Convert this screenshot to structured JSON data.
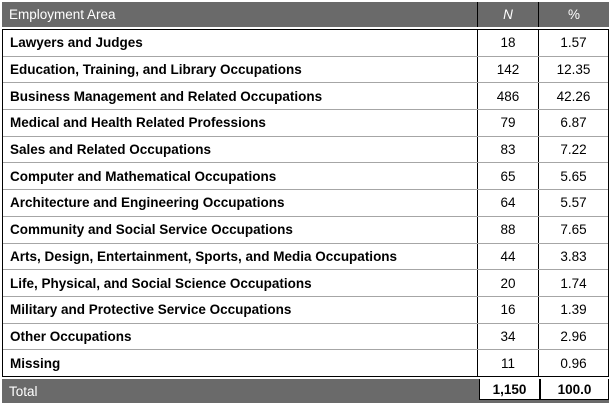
{
  "colors": {
    "header_bg": "#6a6a6a",
    "header_text": "#ffffff",
    "row_separator": "#a6a6a6",
    "cell_border": "#000000",
    "body_text": "#000000"
  },
  "header": {
    "area": "Employment Area",
    "n": "N",
    "pct": "%"
  },
  "total": {
    "label": "Total",
    "n": "1,150",
    "pct": "100.0"
  },
  "chart_data": {
    "type": "table",
    "title": "Employment Area frequency table",
    "columns": [
      "Employment Area",
      "N",
      "%"
    ],
    "rows": [
      [
        "Lawyers and Judges",
        18,
        1.57
      ],
      [
        "Education, Training, and Library Occupations",
        142,
        12.35
      ],
      [
        "Business Management and Related Occupations",
        486,
        42.26
      ],
      [
        "Medical and Health Related Professions",
        79,
        6.87
      ],
      [
        "Sales and Related Occupations",
        83,
        7.22
      ],
      [
        "Computer and Mathematical Occupations",
        65,
        5.65
      ],
      [
        "Architecture and Engineering Occupations",
        64,
        5.57
      ],
      [
        "Community and Social Service Occupations",
        88,
        7.65
      ],
      [
        "Arts, Design, Entertainment, Sports, and Media Occupations",
        44,
        3.83
      ],
      [
        "Life, Physical, and Social Science Occupations",
        20,
        1.74
      ],
      [
        "Military and Protective Service Occupations",
        16,
        1.39
      ],
      [
        "Other Occupations",
        34,
        2.96
      ],
      [
        "Missing",
        11,
        0.96
      ]
    ],
    "total_row": [
      "Total",
      "1,150",
      "100.0"
    ]
  }
}
